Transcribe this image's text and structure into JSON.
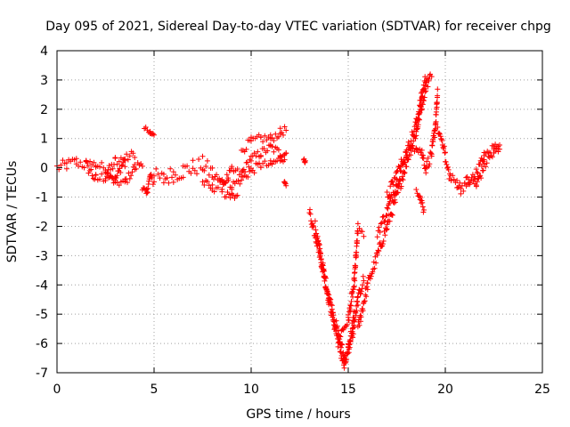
{
  "chart_data": {
    "type": "scatter",
    "title": "Day 095 of 2021, Sidereal Day-to-day VTEC variation (SDTVAR) for receiver chpg",
    "xlabel": "GPS time / hours",
    "ylabel": "SDTVAR / TECUs",
    "xlim": [
      0,
      25
    ],
    "ylim": [
      -7,
      4
    ],
    "x_ticks": [
      0,
      5,
      10,
      15,
      20,
      25
    ],
    "y_ticks": [
      -7,
      -6,
      -5,
      -4,
      -3,
      -2,
      -1,
      0,
      1,
      2,
      3,
      4
    ],
    "grid": true,
    "marker": "+",
    "color": "#ff0000",
    "series": [
      {
        "segments": [
          {
            "band": 0.4,
            "points": [
              [
                0.0,
                0.0
              ],
              [
                0.5,
                0.1
              ],
              [
                1.0,
                0.2
              ],
              [
                1.5,
                0.1
              ],
              [
                2.0,
                -0.4
              ],
              [
                2.5,
                -0.3
              ],
              [
                3.0,
                0.2
              ],
              [
                3.5,
                0.2
              ]
            ]
          },
          {
            "band": 0.3,
            "points": [
              [
                1.5,
                0.2
              ],
              [
                2.0,
                0.1
              ],
              [
                2.5,
                0.0
              ],
              [
                3.0,
                -0.4
              ],
              [
                3.5,
                0.3
              ],
              [
                4.0,
                0.5
              ]
            ]
          },
          {
            "band": 0.3,
            "points": [
              [
                2.5,
                -0.2
              ],
              [
                3.0,
                -0.5
              ],
              [
                3.5,
                -0.5
              ],
              [
                4.0,
                0.0
              ],
              [
                4.4,
                0.2
              ]
            ]
          },
          {
            "band": 0.3,
            "points": [
              [
                4.4,
                -0.7
              ],
              [
                4.6,
                -0.9
              ],
              [
                4.8,
                -0.3
              ],
              [
                5.0,
                -0.5
              ]
            ]
          },
          {
            "band": 0.2,
            "points": [
              [
                4.5,
                1.4
              ],
              [
                4.8,
                1.2
              ],
              [
                5.0,
                1.2
              ]
            ]
          },
          {
            "band": 0.6,
            "points": [
              [
                5.0,
                -0.3
              ],
              [
                5.5,
                -0.4
              ],
              [
                6.0,
                -0.2
              ],
              [
                6.5,
                -0.1
              ],
              [
                7.0,
                0.0
              ],
              [
                7.5,
                0.1
              ],
              [
                8.0,
                -0.2
              ],
              [
                8.5,
                -0.6
              ],
              [
                9.0,
                -1.0
              ],
              [
                9.3,
                -0.9
              ]
            ]
          },
          {
            "band": 0.3,
            "points": [
              [
                7.5,
                -0.5
              ],
              [
                8.0,
                -0.7
              ],
              [
                8.5,
                -0.6
              ],
              [
                9.0,
                -0.1
              ],
              [
                9.5,
                -0.2
              ],
              [
                10.0,
                0.3
              ],
              [
                10.5,
                0.5
              ],
              [
                11.0,
                0.7
              ],
              [
                11.5,
                0.5
              ],
              [
                11.8,
                0.5
              ]
            ]
          },
          {
            "band": 0.3,
            "points": [
              [
                8.5,
                -0.4
              ],
              [
                9.0,
                -0.6
              ],
              [
                9.5,
                -0.4
              ],
              [
                10.0,
                -0.1
              ],
              [
                10.5,
                0.1
              ],
              [
                11.0,
                0.1
              ],
              [
                11.5,
                0.3
              ],
              [
                11.8,
                0.4
              ]
            ]
          },
          {
            "band": 0.3,
            "points": [
              [
                9.5,
                0.6
              ],
              [
                10.0,
                0.9
              ],
              [
                10.5,
                1.0
              ],
              [
                11.0,
                1.0
              ],
              [
                11.5,
                1.2
              ],
              [
                11.8,
                1.3
              ]
            ]
          },
          {
            "band": 0.1,
            "points": [
              [
                11.7,
                -0.5
              ],
              [
                11.8,
                -0.6
              ]
            ]
          },
          {
            "band": 0.1,
            "points": [
              [
                12.7,
                0.3
              ],
              [
                12.8,
                0.2
              ]
            ]
          },
          {
            "band": 0.4,
            "points": [
              [
                13.0,
                -1.5
              ],
              [
                13.5,
                -2.8
              ],
              [
                14.0,
                -4.5
              ],
              [
                14.5,
                -6.0
              ],
              [
                14.8,
                -6.8
              ],
              [
                15.0,
                -6.3
              ],
              [
                15.3,
                -5.0
              ]
            ]
          },
          {
            "band": 0.4,
            "points": [
              [
                13.3,
                -2.0
              ],
              [
                13.8,
                -3.8
              ],
              [
                14.3,
                -5.2
              ],
              [
                14.8,
                -6.5
              ],
              [
                15.2,
                -5.8
              ],
              [
                15.5,
                -4.5
              ],
              [
                15.8,
                -3.8
              ]
            ]
          },
          {
            "band": 0.4,
            "points": [
              [
                14.5,
                -5.8
              ],
              [
                15.0,
                -5.2
              ],
              [
                15.3,
                -4.0
              ],
              [
                15.5,
                -2.1
              ],
              [
                15.8,
                -2.2
              ]
            ]
          },
          {
            "band": 0.4,
            "points": [
              [
                15.5,
                -5.5
              ],
              [
                16.0,
                -4.0
              ],
              [
                16.5,
                -3.0
              ],
              [
                17.0,
                -2.0
              ],
              [
                17.5,
                -1.0
              ],
              [
                18.0,
                0.2
              ],
              [
                18.5,
                1.2
              ],
              [
                18.8,
                2.2
              ],
              [
                19.0,
                2.8
              ],
              [
                19.2,
                3.0
              ]
            ]
          },
          {
            "band": 0.4,
            "points": [
              [
                16.5,
                -2.2
              ],
              [
                17.0,
                -1.5
              ],
              [
                17.5,
                -0.5
              ],
              [
                18.0,
                0.5
              ],
              [
                18.5,
                1.5
              ],
              [
                18.8,
                2.5
              ],
              [
                19.0,
                3.1
              ],
              [
                19.3,
                3.0
              ]
            ]
          },
          {
            "band": 0.4,
            "points": [
              [
                17.0,
                -1.0
              ],
              [
                17.5,
                -0.2
              ],
              [
                18.0,
                0.5
              ],
              [
                18.5,
                0.8
              ],
              [
                18.8,
                0.5
              ],
              [
                19.0,
                0.0
              ],
              [
                19.3,
                0.5
              ],
              [
                19.5,
                1.5
              ],
              [
                19.6,
                2.5
              ]
            ]
          },
          {
            "band": 0.2,
            "points": [
              [
                18.5,
                -0.8
              ],
              [
                18.7,
                -1.0
              ],
              [
                18.9,
                -1.5
              ]
            ]
          },
          {
            "band": 0.2,
            "points": [
              [
                19.6,
                1.3
              ],
              [
                19.8,
                1.0
              ],
              [
                20.0,
                0.5
              ]
            ]
          },
          {
            "band": 0.4,
            "points": [
              [
                20.0,
                0.2
              ],
              [
                20.3,
                -0.4
              ],
              [
                20.6,
                -0.5
              ],
              [
                20.8,
                -0.7
              ],
              [
                21.2,
                -0.4
              ],
              [
                21.6,
                -0.6
              ],
              [
                22.0,
                0.1
              ],
              [
                22.5,
                0.5
              ],
              [
                22.8,
                0.6
              ]
            ]
          },
          {
            "band": 0.3,
            "points": [
              [
                21.0,
                -0.6
              ],
              [
                21.5,
                -0.3
              ],
              [
                22.0,
                0.4
              ],
              [
                22.5,
                0.7
              ],
              [
                22.8,
                0.9
              ]
            ]
          }
        ]
      }
    ]
  }
}
